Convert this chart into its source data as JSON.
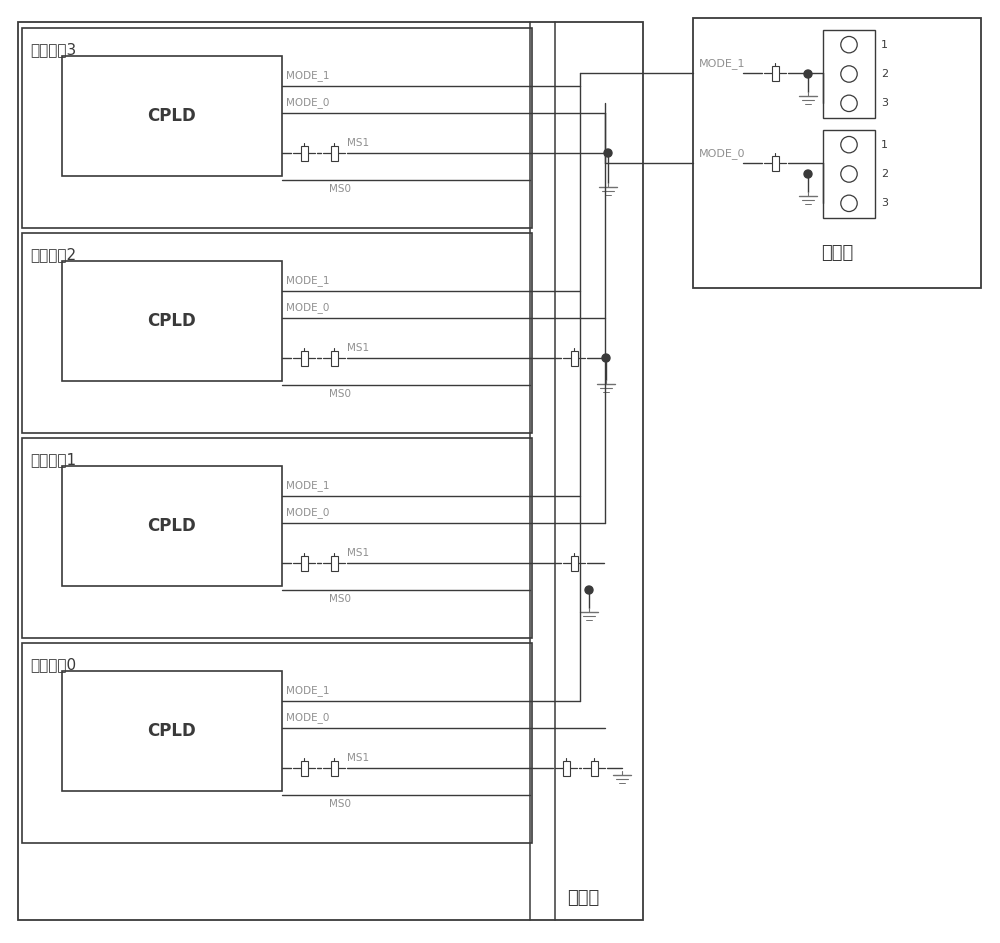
{
  "fig_width": 10.0,
  "fig_height": 9.43,
  "bg_color": "#ffffff",
  "bc": "#3a3a3a",
  "gc": "#909090",
  "dc": "#3a3a3a",
  "node_labels": [
    "计算节点3",
    "计算节点2",
    "计算节点1",
    "计算节点0"
  ],
  "mgmt_label": "管理板",
  "backplane_label": "中背板",
  "mode1_label": "MODE_1",
  "mode0_label": "MODE_0",
  "ms1_label": "MS1",
  "ms0_label": "MS0",
  "cpld_label": "CPLD",
  "pin_labels": [
    "1",
    "2",
    "3"
  ]
}
